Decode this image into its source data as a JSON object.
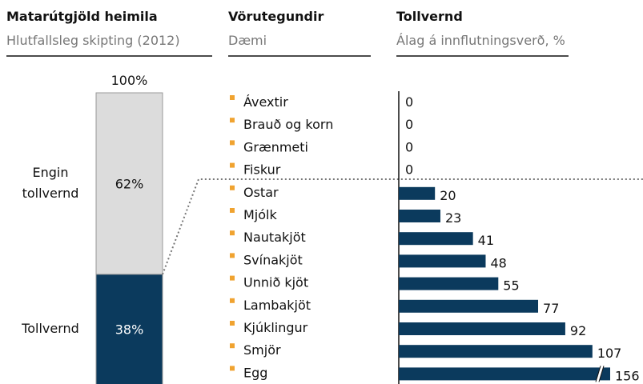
{
  "columns": [
    {
      "title": "Matarútgjöld heimila",
      "subtitle": "Hlutfallsleg skipting (2012)"
    },
    {
      "title": "Vörutegundir",
      "subtitle": "Dæmi"
    },
    {
      "title": "Tollvernd",
      "subtitle": "Álag á innflutningsverð, %"
    }
  ],
  "chart_data": [
    {
      "type": "stacked_bar",
      "total_label": "100%",
      "series": [
        {
          "name": "Engin tollvernd",
          "color": "#dcdcdc",
          "values": [
            62
          ],
          "value_labels": [
            "62%"
          ]
        },
        {
          "name": "Tollvernd",
          "color": "#0b3a5d",
          "values": [
            38
          ],
          "value_labels": [
            "38%"
          ]
        }
      ]
    },
    {
      "type": "hbar",
      "categories": [
        "Ávextir",
        "Brauð og korn",
        "Grænmeti",
        "Fiskur",
        "Ostar",
        "Mjólk",
        "Nautakjöt",
        "Svínakjöt",
        "Unnið kjöt",
        "Lambakjöt",
        "Kjúklingur",
        "Smjör",
        "Egg"
      ],
      "values": [
        0,
        0,
        0,
        0,
        20,
        23,
        41,
        48,
        55,
        77,
        92,
        107,
        156
      ],
      "color": "#0b3a5d",
      "bullet_color": "#f0a330"
    }
  ]
}
